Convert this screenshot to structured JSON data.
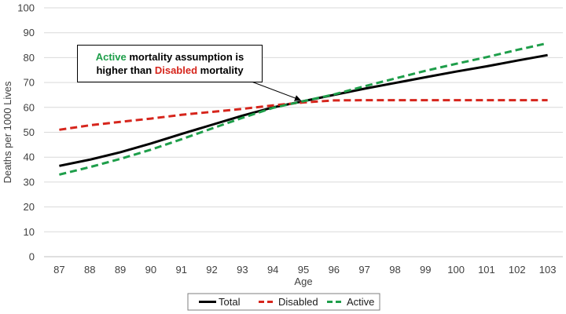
{
  "chart_data": {
    "type": "line",
    "title": "",
    "xlabel": "Age",
    "ylabel": "Deaths per 1000 Lives",
    "ylim": [
      0,
      100
    ],
    "yticks": [
      0,
      10,
      20,
      30,
      40,
      50,
      60,
      70,
      80,
      90,
      100
    ],
    "grid": true,
    "legend_position": "bottom",
    "categories": [
      "87",
      "88",
      "89",
      "90",
      "91",
      "92",
      "93",
      "94",
      "95",
      "96",
      "97",
      "98",
      "99",
      "100",
      "101",
      "102",
      "103"
    ],
    "series": [
      {
        "name": "Total",
        "color": "#000000",
        "style": "solid",
        "values": [
          36.5,
          39.0,
          42.0,
          45.5,
          49.3,
          53.0,
          56.7,
          60.0,
          62.5,
          65.0,
          67.5,
          69.8,
          72.1,
          74.4,
          76.5,
          78.8,
          81.0
        ]
      },
      {
        "name": "Disabled",
        "color": "#d6251c",
        "style": "dashed",
        "values": [
          51.0,
          52.8,
          54.2,
          55.5,
          57.0,
          58.2,
          59.4,
          60.8,
          62.0,
          62.8,
          62.9,
          62.9,
          62.9,
          62.9,
          62.9,
          62.9,
          62.9
        ]
      },
      {
        "name": "Active",
        "color": "#1e9e4a",
        "style": "dashed",
        "values": [
          33.0,
          36.0,
          39.3,
          43.0,
          47.2,
          51.5,
          55.8,
          59.8,
          62.5,
          65.2,
          68.5,
          71.6,
          74.7,
          77.5,
          80.2,
          83.1,
          85.8
        ]
      }
    ],
    "annotation": {
      "line1_part1": "Active",
      "line1_part2": " mortality assumption is",
      "line2_part1": "higher than ",
      "line2_part2": "Disabled",
      "line2_part3": " mortality",
      "points_to": {
        "x": "95",
        "y": 62
      }
    }
  }
}
